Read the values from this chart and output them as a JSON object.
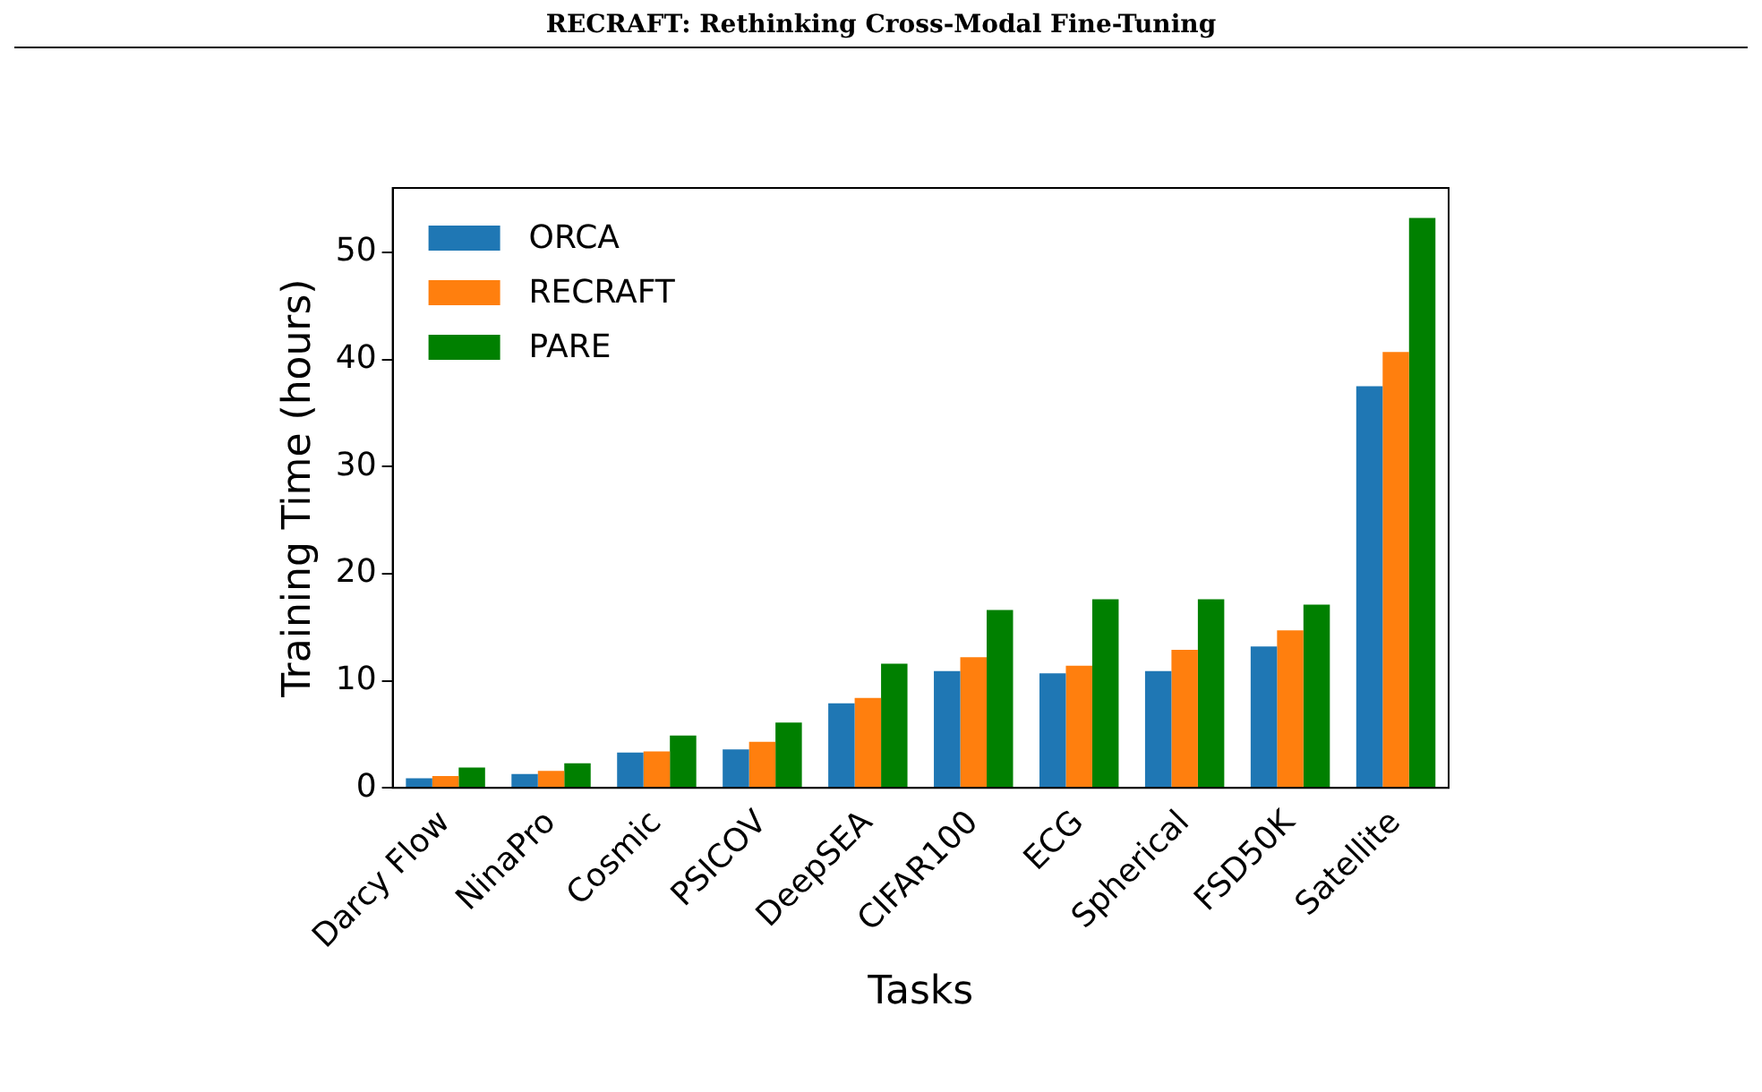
{
  "chart_data": {
    "type": "bar",
    "xlabel": "Tasks",
    "ylabel": "Training Time (hours)",
    "annotations": [
      "RECRAFT: Rethinking Cross-Modal Fine-Tuning"
    ],
    "categories": [
      "Darcy Flow",
      "NinaPro",
      "Cosmic",
      "PSICOV",
      "DeepSEA",
      "CIFAR100",
      "ECG",
      "Spherical",
      "FSD50K",
      "Satellite"
    ],
    "series": [
      {
        "name": "ORCA",
        "color": "#1f77b4",
        "values": [
          0.9,
          1.3,
          3.3,
          3.6,
          7.9,
          10.9,
          10.7,
          10.9,
          13.2,
          37.5
        ]
      },
      {
        "name": "RECRAFT",
        "color": "#ff7f0e",
        "values": [
          1.1,
          1.6,
          3.4,
          4.3,
          8.4,
          12.2,
          11.4,
          12.9,
          14.7,
          40.7
        ]
      },
      {
        "name": "PARE",
        "color": "#008000",
        "values": [
          1.9,
          2.3,
          4.9,
          6.1,
          11.6,
          16.6,
          17.6,
          17.6,
          17.1,
          53.2
        ]
      }
    ],
    "ylim": [
      0,
      56
    ],
    "yticks": [
      0,
      10,
      20,
      30,
      40,
      50
    ],
    "grid": false,
    "legend": "top left"
  }
}
